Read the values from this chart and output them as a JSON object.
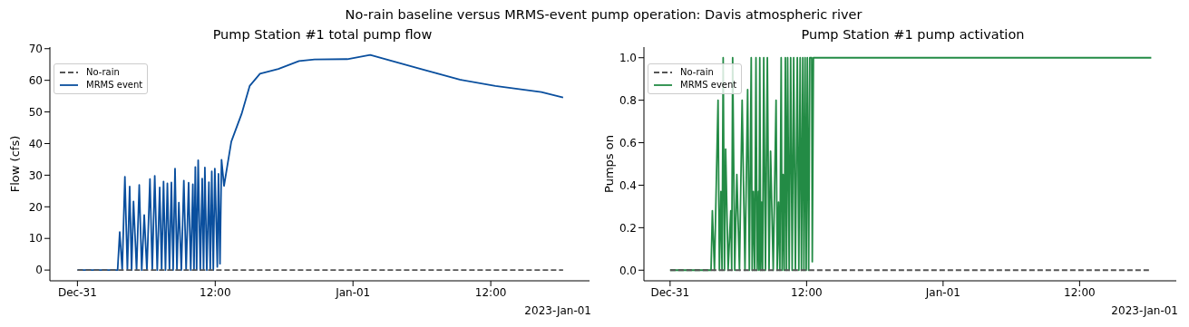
{
  "chart_data": [
    {
      "type": "line",
      "title": "Pump Station #1 total pump flow",
      "ylabel": "Flow (cfs)",
      "xlim": [
        "2022-12-30T21:36",
        "2023-01-01T20:36"
      ],
      "xticks": [
        {
          "value": "2022-12-31",
          "label": "Dec-31"
        },
        {
          "value": "2022-12-31T12:00",
          "label": "12:00"
        },
        {
          "value": "2023-01-01",
          "label": "Jan-01"
        },
        {
          "value": "2023-01-01T12:00",
          "label": "12:00"
        }
      ],
      "ylim": [
        -3.4,
        70.5
      ],
      "yticks": [
        0,
        10,
        20,
        30,
        40,
        50,
        60,
        70
      ],
      "legend": "top left",
      "marker": "none",
      "annotations": [
        "No-rain baseline versus MRMS-event pump operation: Davis atmospheric river",
        "2023-Jan-01"
      ],
      "series": [
        {
          "name": "No-rain",
          "color": "#555555",
          "line_style": "dashed",
          "x": [
            "2022-12-31T00:00",
            "2023-01-01T18:18"
          ],
          "values": [
            0,
            0
          ]
        },
        {
          "name": "MRMS event",
          "color": "#0a4f9e",
          "line_style": "solid",
          "x": [
            "2022-12-31T00:00",
            "2022-12-31T03:30",
            "2022-12-31T03:41",
            "2022-12-31T03:54",
            "2022-12-31T04:08",
            "2022-12-31T04:21",
            "2022-12-31T04:33",
            "2022-12-31T04:43",
            "2022-12-31T04:53",
            "2022-12-31T05:09",
            "2022-12-31T05:23",
            "2022-12-31T05:36",
            "2022-12-31T05:49",
            "2022-12-31T06:03",
            "2022-12-31T06:19",
            "2022-12-31T06:31",
            "2022-12-31T06:44",
            "2022-12-31T06:57",
            "2022-12-31T07:10",
            "2022-12-31T07:20",
            "2022-12-31T07:30",
            "2022-12-31T07:40",
            "2022-12-31T07:50",
            "2022-12-31T08:01",
            "2022-12-31T08:11",
            "2022-12-31T08:20",
            "2022-12-31T08:30",
            "2022-12-31T08:40",
            "2022-12-31T08:50",
            "2022-12-31T09:03",
            "2022-12-31T09:16",
            "2022-12-31T09:28",
            "2022-12-31T09:41",
            "2022-12-31T09:52",
            "2022-12-31T10:03",
            "2022-12-31T10:09",
            "2022-12-31T10:16",
            "2022-12-31T10:23",
            "2022-12-31T10:31",
            "2022-12-31T10:42",
            "2022-12-31T10:52",
            "2022-12-31T10:59",
            "2022-12-31T11:06",
            "2022-12-31T11:16",
            "2022-12-31T11:27",
            "2022-12-31T11:34",
            "2022-12-31T11:42",
            "2022-12-31T11:50",
            "2022-12-31T11:58",
            "2022-12-31T12:11",
            "2022-12-31T12:17",
            "2022-12-31T12:25",
            "2022-12-31T12:33",
            "2022-12-31T12:46",
            "2022-12-31T13:24",
            "2022-12-31T14:18",
            "2022-12-31T15:00",
            "2022-12-31T15:54",
            "2022-12-31T17:30",
            "2022-12-31T19:18",
            "2022-12-31T20:39",
            "2022-12-31T23:30",
            "2023-01-01T01:30",
            "2023-01-01T03:12",
            "2023-01-01T05:54",
            "2023-01-01T09:18",
            "2023-01-01T12:24",
            "2023-01-01T16:24",
            "2023-01-01T18:18"
          ],
          "values": [
            0,
            0,
            12,
            0,
            29.5,
            0,
            26.4,
            0,
            21.7,
            0,
            26.9,
            0,
            17.4,
            0,
            28.8,
            0,
            29.8,
            0,
            26.1,
            0,
            28,
            0,
            27.4,
            0,
            27.7,
            0,
            32.1,
            0,
            21.3,
            0,
            28.3,
            0,
            27.6,
            0,
            27.1,
            0,
            32.6,
            0,
            34.7,
            0,
            28.9,
            0,
            32.4,
            0,
            27.8,
            0,
            31.2,
            0,
            32.1,
            1,
            30.4,
            2,
            34.9,
            26.6,
            40.6,
            49.4,
            58.2,
            62.1,
            63.6,
            66.1,
            66.6,
            66.7,
            68,
            66.3,
            63.6,
            60.2,
            58.2,
            56.3,
            54.6
          ]
        }
      ]
    },
    {
      "type": "line",
      "title": "Pump Station #1 pump activation",
      "ylabel": "Pumps on",
      "xlim": [
        "2022-12-30T21:42",
        "2023-01-01T20:30"
      ],
      "xticks": [
        {
          "value": "2022-12-31",
          "label": "Dec-31"
        },
        {
          "value": "2022-12-31T12:00",
          "label": "12:00"
        },
        {
          "value": "2023-01-01",
          "label": "Jan-01"
        },
        {
          "value": "2023-01-01T12:00",
          "label": "12:00"
        }
      ],
      "ylim": [
        -0.05,
        1.05
      ],
      "yticks": [
        {
          "value": 0,
          "label": "0.0"
        },
        {
          "value": 0.2,
          "label": "0.2"
        },
        {
          "value": 0.4,
          "label": "0.4"
        },
        {
          "value": 0.6,
          "label": "0.6"
        },
        {
          "value": 0.8,
          "label": "0.8"
        },
        {
          "value": 1,
          "label": "1.0"
        }
      ],
      "legend": "top left",
      "marker": "none",
      "annotations": [
        "2023-Jan-01"
      ],
      "series": [
        {
          "name": "No-rain",
          "color": "#555555",
          "line_style": "dashed",
          "x": [
            "2022-12-31T00:00",
            "2023-01-01T18:18"
          ],
          "values": [
            0,
            0
          ]
        },
        {
          "name": "MRMS event",
          "color": "#238b45",
          "line_style": "solid",
          "x": [
            "2022-12-31T00:00",
            "2022-12-31T03:36",
            "2022-12-31T03:43",
            "2022-12-31T03:54",
            "2022-12-31T04:13",
            "2022-12-31T04:20",
            "2022-12-31T04:28",
            "2022-12-31T04:34",
            "2022-12-31T04:40",
            "2022-12-31T04:47",
            "2022-12-31T04:53",
            "2022-12-31T05:06",
            "2022-12-31T05:20",
            "2022-12-31T05:25",
            "2022-12-31T05:30",
            "2022-12-31T05:41",
            "2022-12-31T05:52",
            "2022-12-31T06:06",
            "2022-12-31T06:20",
            "2022-12-31T06:35",
            "2022-12-31T06:49",
            "2022-12-31T06:58",
            "2022-12-31T07:08",
            "2022-12-31T07:13",
            "2022-12-31T07:19",
            "2022-12-31T07:26",
            "2022-12-31T07:33",
            "2022-12-31T07:39",
            "2022-12-31T07:46",
            "2022-12-31T07:49",
            "2022-12-31T07:53",
            "2022-12-31T07:58",
            "2022-12-31T08:03",
            "2022-12-31T08:08",
            "2022-12-31T08:14",
            "2022-12-31T08:23",
            "2022-12-31T08:33",
            "2022-12-31T08:42",
            "2022-12-31T08:50",
            "2022-12-31T09:04",
            "2022-12-31T09:19",
            "2022-12-31T09:25",
            "2022-12-31T09:32",
            "2022-12-31T09:39",
            "2022-12-31T09:46",
            "2022-12-31T09:51",
            "2022-12-31T09:56",
            "2022-12-31T10:02",
            "2022-12-31T10:08",
            "2022-12-31T10:14",
            "2022-12-31T10:20",
            "2022-12-31T10:28",
            "2022-12-31T10:36",
            "2022-12-31T10:44",
            "2022-12-31T10:52",
            "2022-12-31T11:01",
            "2022-12-31T11:11",
            "2022-12-31T11:19",
            "2022-12-31T11:26",
            "2022-12-31T11:33",
            "2022-12-31T11:40",
            "2022-12-31T11:46",
            "2022-12-31T11:52",
            "2022-12-31T11:58",
            "2022-12-31T12:04",
            "2022-12-31T12:11",
            "2022-12-31T12:17",
            "2022-12-31T12:27",
            "2022-12-31T12:30",
            "2022-12-31T12:36",
            "2023-01-01T18:18"
          ],
          "values": [
            0,
            0,
            0.28,
            0,
            0.8,
            0,
            0.37,
            0,
            1,
            0,
            0.57,
            0,
            0.28,
            0,
            1,
            0,
            0.45,
            0,
            0.8,
            0,
            0.85,
            0,
            1,
            0,
            0.37,
            0,
            1,
            0,
            0.37,
            0,
            1,
            0,
            0.32,
            0,
            1,
            0,
            1,
            0,
            0.56,
            0,
            0.8,
            0,
            0.32,
            0,
            1,
            0,
            0.45,
            0,
            1,
            0,
            1,
            0,
            1,
            0,
            1,
            0,
            1,
            0,
            1,
            0,
            1,
            0,
            1,
            0,
            1,
            0,
            1,
            1,
            0.04,
            1,
            1
          ]
        }
      ]
    }
  ]
}
